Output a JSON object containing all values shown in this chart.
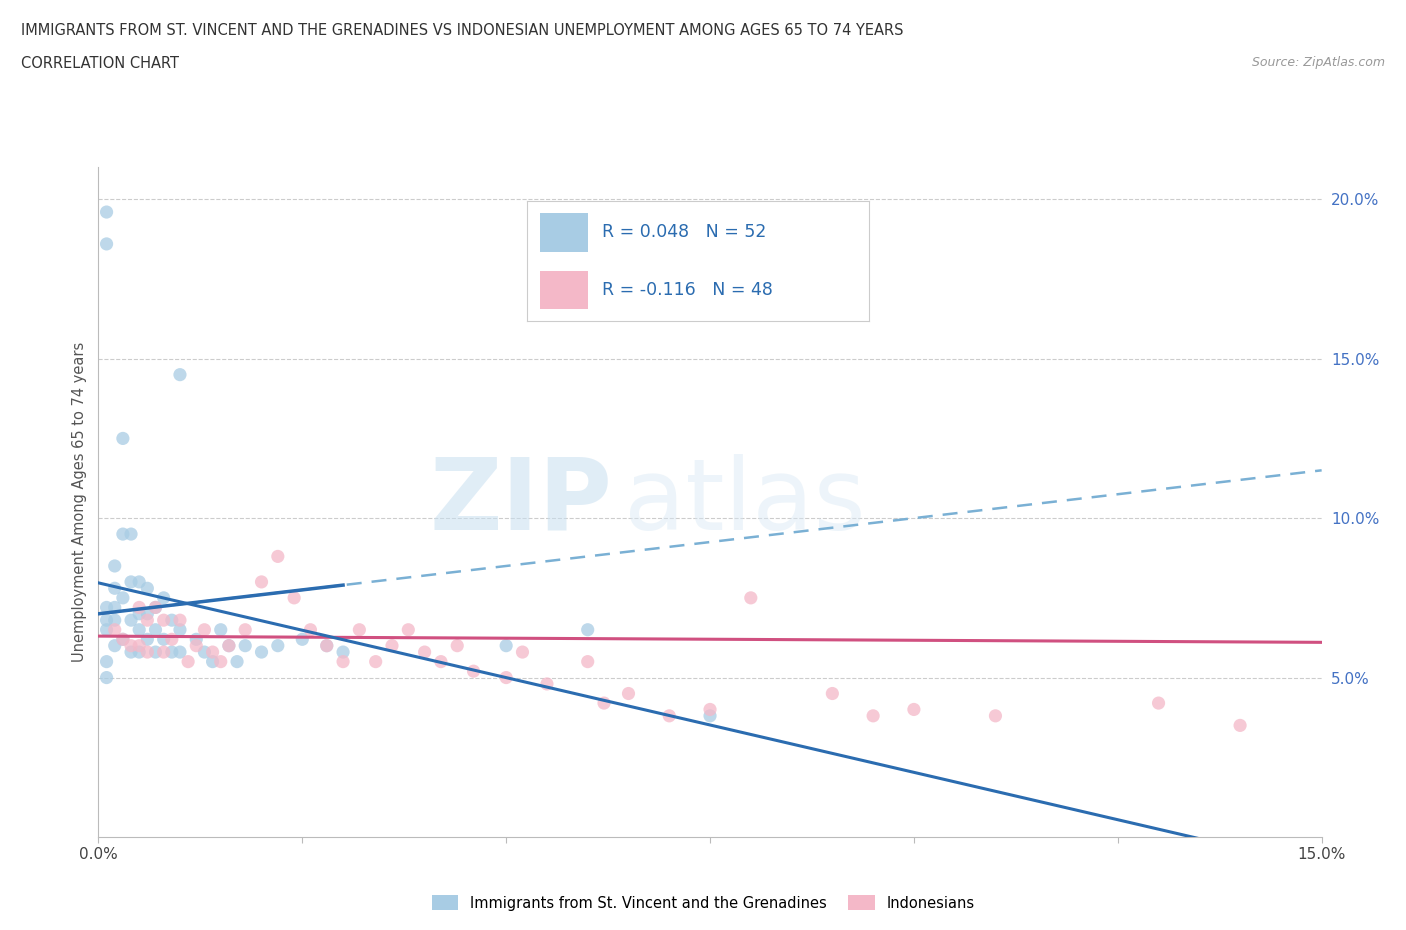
{
  "title_line1": "IMMIGRANTS FROM ST. VINCENT AND THE GRENADINES VS INDONESIAN UNEMPLOYMENT AMONG AGES 65 TO 74 YEARS",
  "title_line2": "CORRELATION CHART",
  "source_text": "Source: ZipAtlas.com",
  "ylabel": "Unemployment Among Ages 65 to 74 years",
  "xlim": [
    0.0,
    0.15
  ],
  "ylim": [
    0.0,
    0.21
  ],
  "blue_color": "#a8cce4",
  "pink_color": "#f4b8c8",
  "blue_trend_color": "#2b6cb0",
  "pink_trend_color": "#d05080",
  "blue_dashed_color": "#7ab0d4",
  "r_blue": 0.048,
  "n_blue": 52,
  "r_pink": -0.116,
  "n_pink": 48,
  "legend_label_blue": "Immigrants from St. Vincent and the Grenadines",
  "legend_label_pink": "Indonesians",
  "watermark_zip": "ZIP",
  "watermark_atlas": "atlas",
  "background_color": "#ffffff",
  "grid_color": "#cccccc",
  "yticks_right": [
    0.05,
    0.1,
    0.15,
    0.2
  ],
  "ytick_labels_right": [
    "5.0%",
    "10.0%",
    "15.0%",
    "20.0%"
  ],
  "blue_scatter_x": [
    0.001,
    0.001,
    0.001,
    0.001,
    0.001,
    0.001,
    0.001,
    0.002,
    0.002,
    0.002,
    0.002,
    0.002,
    0.003,
    0.003,
    0.003,
    0.003,
    0.004,
    0.004,
    0.004,
    0.004,
    0.005,
    0.005,
    0.005,
    0.005,
    0.006,
    0.006,
    0.006,
    0.007,
    0.007,
    0.007,
    0.008,
    0.008,
    0.009,
    0.009,
    0.01,
    0.01,
    0.012,
    0.013,
    0.014,
    0.015,
    0.016,
    0.017,
    0.018,
    0.02,
    0.022,
    0.025,
    0.028,
    0.03,
    0.05,
    0.06,
    0.075,
    0.01
  ],
  "blue_scatter_y": [
    0.196,
    0.186,
    0.072,
    0.068,
    0.065,
    0.055,
    0.05,
    0.085,
    0.078,
    0.072,
    0.068,
    0.06,
    0.125,
    0.095,
    0.075,
    0.062,
    0.095,
    0.08,
    0.068,
    0.058,
    0.08,
    0.07,
    0.065,
    0.058,
    0.078,
    0.07,
    0.062,
    0.072,
    0.065,
    0.058,
    0.075,
    0.062,
    0.068,
    0.058,
    0.065,
    0.058,
    0.062,
    0.058,
    0.055,
    0.065,
    0.06,
    0.055,
    0.06,
    0.058,
    0.06,
    0.062,
    0.06,
    0.058,
    0.06,
    0.065,
    0.038,
    0.145
  ],
  "pink_scatter_x": [
    0.002,
    0.003,
    0.004,
    0.005,
    0.005,
    0.006,
    0.006,
    0.007,
    0.008,
    0.008,
    0.009,
    0.01,
    0.011,
    0.012,
    0.013,
    0.014,
    0.015,
    0.016,
    0.018,
    0.02,
    0.022,
    0.024,
    0.026,
    0.028,
    0.03,
    0.032,
    0.034,
    0.036,
    0.038,
    0.04,
    0.042,
    0.044,
    0.046,
    0.05,
    0.052,
    0.055,
    0.06,
    0.062,
    0.065,
    0.07,
    0.075,
    0.08,
    0.09,
    0.095,
    0.1,
    0.11,
    0.13,
    0.14
  ],
  "pink_scatter_y": [
    0.065,
    0.062,
    0.06,
    0.072,
    0.06,
    0.068,
    0.058,
    0.072,
    0.068,
    0.058,
    0.062,
    0.068,
    0.055,
    0.06,
    0.065,
    0.058,
    0.055,
    0.06,
    0.065,
    0.08,
    0.088,
    0.075,
    0.065,
    0.06,
    0.055,
    0.065,
    0.055,
    0.06,
    0.065,
    0.058,
    0.055,
    0.06,
    0.052,
    0.05,
    0.058,
    0.048,
    0.055,
    0.042,
    0.045,
    0.038,
    0.04,
    0.075,
    0.045,
    0.038,
    0.04,
    0.038,
    0.042,
    0.035
  ]
}
